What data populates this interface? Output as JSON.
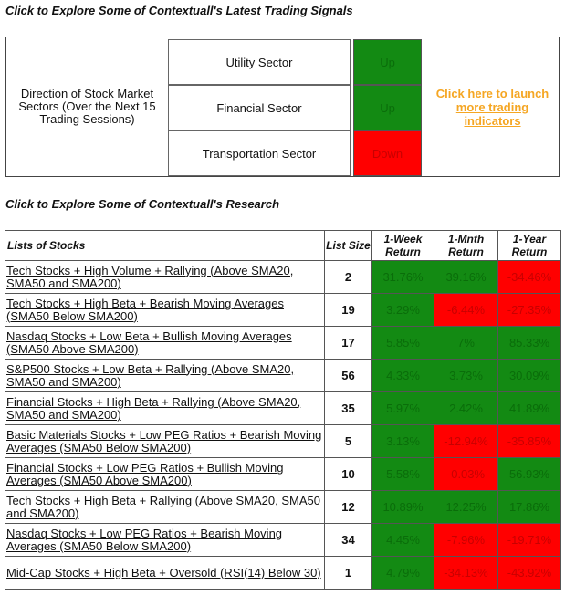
{
  "signals": {
    "title": "Click to Explore Some of Contextuall's Latest Trading Signals",
    "direction_label": "Direction of Stock Market Sectors (Over the Next 15 Trading Sessions)",
    "sectors": [
      {
        "name": "Utility Sector",
        "signal": "Up",
        "status": "up"
      },
      {
        "name": "Financial Sector",
        "signal": "Up",
        "status": "up"
      },
      {
        "name": "Transportation Sector",
        "signal": "Down",
        "status": "down"
      }
    ],
    "link_text": "Click here to launch more trading indicators"
  },
  "research": {
    "title": "Click to Explore Some of Contextuall's Research",
    "headers": {
      "list": "Lists of Stocks",
      "size": "List Size",
      "week": "1-Week Return",
      "month": "1-Mnth Return",
      "year": "1-Year Return"
    },
    "rows": [
      {
        "name": "Tech Stocks + High Volume + Rallying (Above SMA20, SMA50 and SMA200)",
        "size": "2",
        "week": "31.76%",
        "month": "39.16%",
        "year": "-34.46%"
      },
      {
        "name": "Tech Stocks + High Beta + Bearish Moving Averages (SMA50 Below SMA200)",
        "size": "19",
        "week": "3.29%",
        "month": "-6.44%",
        "year": "-27.35%"
      },
      {
        "name": "Nasdaq Stocks + Low Beta + Bullish Moving Averages (SMA50 Above SMA200)",
        "size": "17",
        "week": "5.85%",
        "month": "7%",
        "year": "85.33%"
      },
      {
        "name": "S&P500 Stocks + Low Beta + Rallying (Above SMA20, SMA50 and SMA200)",
        "size": "56",
        "week": "4.33%",
        "month": "3.73%",
        "year": "30.09%"
      },
      {
        "name": "Financial Stocks + High Beta + Rallying (Above SMA20, SMA50 and SMA200)",
        "size": "35",
        "week": "5.97%",
        "month": "2.42%",
        "year": "41.89%"
      },
      {
        "name": "Basic Materials Stocks + Low PEG Ratios + Bearish Moving Averages (SMA50 Below SMA200)",
        "size": "5",
        "week": "3.13%",
        "month": "-12.94%",
        "year": "-35.85%"
      },
      {
        "name": "Financial Stocks + Low PEG Ratios + Bullish Moving Averages (SMA50 Above SMA200)",
        "size": "10",
        "week": "5.58%",
        "month": "-0.03%",
        "year": "56.93%"
      },
      {
        "name": "Tech Stocks + High Beta + Rallying (Above SMA20, SMA50 and SMA200)",
        "size": "12",
        "week": "10.89%",
        "month": "12.25%",
        "year": "17.86%"
      },
      {
        "name": "Nasdaq Stocks + Low PEG Ratios + Bearish Moving Averages (SMA50 Below SMA200)",
        "size": "34",
        "week": "4.45%",
        "month": "-7.96%",
        "year": "-19.71%"
      },
      {
        "name": "Mid-Cap Stocks + High Beta + Oversold (RSI(14) Below 30)",
        "size": "1",
        "week": "4.79%",
        "month": "-34.13%",
        "year": "-43.92%"
      }
    ]
  },
  "colors": {
    "positive": "#138a13",
    "negative": "#ff0000",
    "link": "#f5a623"
  }
}
